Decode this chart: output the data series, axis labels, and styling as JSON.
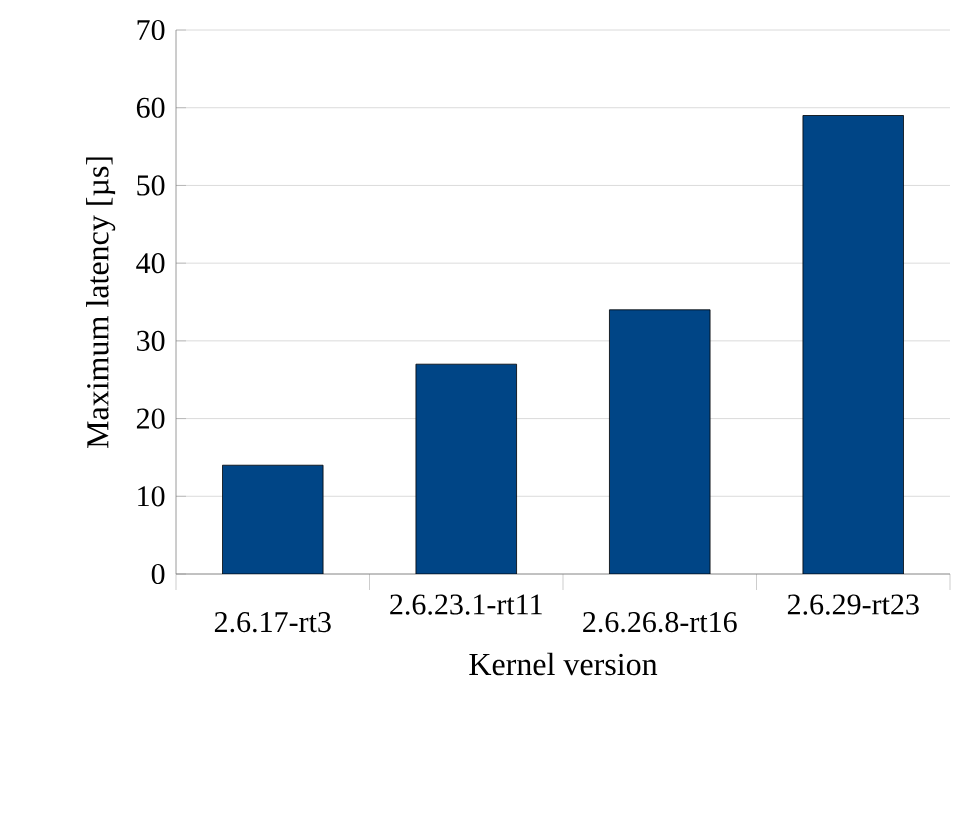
{
  "chart_data": {
    "type": "bar",
    "xlabel": "Kernel version",
    "ylabel": "Maximum latency [µs]",
    "categories": [
      "2.6.17-rt3",
      "2.6.23.1-rt11",
      "2.6.26.8-rt16",
      "2.6.29-rt23"
    ],
    "values": [
      14,
      27,
      34,
      59
    ],
    "color": "#004586",
    "ylim": [
      0,
      70
    ],
    "yticks": [
      0,
      10,
      20,
      30,
      40,
      50,
      60,
      70
    ],
    "grid": "y"
  }
}
